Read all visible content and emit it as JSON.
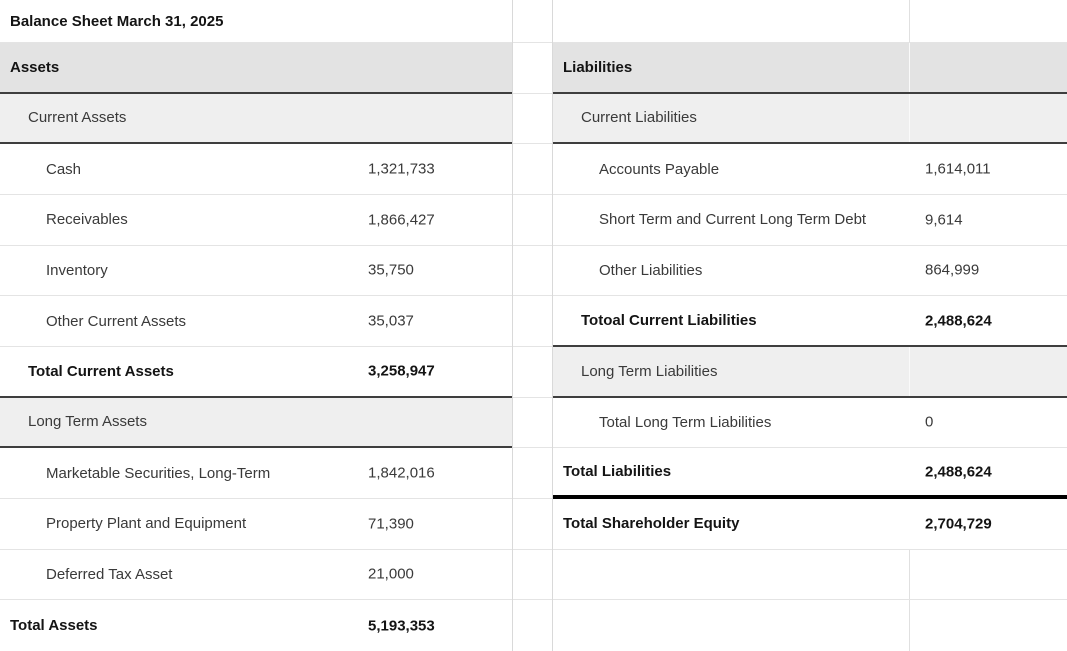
{
  "title": "Balance Sheet March 31, 2025",
  "colors": {
    "header_row_bg": "#e3e3e3",
    "subsection_row_bg": "#efefef",
    "grid_line": "#e4e4e4",
    "strong_border": "#3e3e3e",
    "emphasis_border": "#000000"
  },
  "assets": {
    "rows": [
      {
        "label": "Balance Sheet March 31, 2025",
        "value": ""
      },
      {
        "label": "Assets",
        "value": ""
      },
      {
        "label": "Current Assets",
        "value": ""
      },
      {
        "label": "Cash",
        "value": "1,321,733"
      },
      {
        "label": "Receivables",
        "value": "1,866,427"
      },
      {
        "label": "Inventory",
        "value": "35,750"
      },
      {
        "label": "Other Current Assets",
        "value": "35,037"
      },
      {
        "label": "Total Current Assets",
        "value": "3,258,947"
      },
      {
        "label": "Long Term Assets",
        "value": ""
      },
      {
        "label": "Marketable Securities, Long-Term",
        "value": "1,842,016"
      },
      {
        "label": "Property Plant and Equipment",
        "value": "71,390"
      },
      {
        "label": "Deferred Tax Asset",
        "value": "21,000"
      },
      {
        "label": "Total Assets",
        "value": "5,193,353"
      }
    ]
  },
  "liabilities": {
    "rows": [
      {
        "label": "",
        "value": ""
      },
      {
        "label": "Liabilities",
        "value": ""
      },
      {
        "label": "Current Liabilities",
        "value": ""
      },
      {
        "label": "Accounts Payable",
        "value": "1,614,011"
      },
      {
        "label": "Short Term and Current Long Term Debt",
        "value": "9,614"
      },
      {
        "label": "Other Liabilities",
        "value": "864,999"
      },
      {
        "label": "Totoal Current Liabilities",
        "value": "2,488,624"
      },
      {
        "label": "Long Term Liabilities",
        "value": ""
      },
      {
        "label": "Total Long Term Liabilities",
        "value": "0"
      },
      {
        "label": "Total Liabilities",
        "value": "2,488,624"
      },
      {
        "label": "Total Shareholder Equity",
        "value": "2,704,729"
      },
      {
        "label": "",
        "value": ""
      },
      {
        "label": "",
        "value": ""
      }
    ]
  }
}
